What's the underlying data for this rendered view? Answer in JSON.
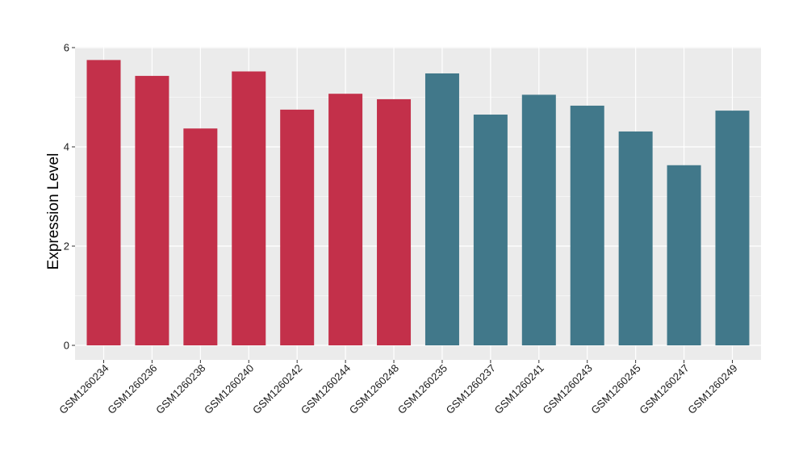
{
  "chart_data": {
    "type": "bar",
    "title": "",
    "xlabel": "",
    "ylabel": "Expression Level",
    "ylim": [
      0,
      6
    ],
    "yticks": [
      0,
      2,
      4,
      6
    ],
    "grid": true,
    "legend": "none",
    "colors": {
      "group1": "#C3304A",
      "group2": "#41788A",
      "panel_bg": "#EBEBEB",
      "grid": "#FFFFFF"
    },
    "categories": [
      "GSM1260234",
      "GSM1260236",
      "GSM1260238",
      "GSM1260240",
      "GSM1260242",
      "GSM1260244",
      "GSM1260248",
      "GSM1260235",
      "GSM1260237",
      "GSM1260241",
      "GSM1260243",
      "GSM1260245",
      "GSM1260247",
      "GSM1260249"
    ],
    "values": [
      5.75,
      5.43,
      4.37,
      5.52,
      4.75,
      5.07,
      4.96,
      5.48,
      4.65,
      5.05,
      4.83,
      4.31,
      3.63,
      4.73
    ],
    "groups": [
      1,
      1,
      1,
      1,
      1,
      1,
      1,
      2,
      2,
      2,
      2,
      2,
      2,
      2
    ]
  }
}
